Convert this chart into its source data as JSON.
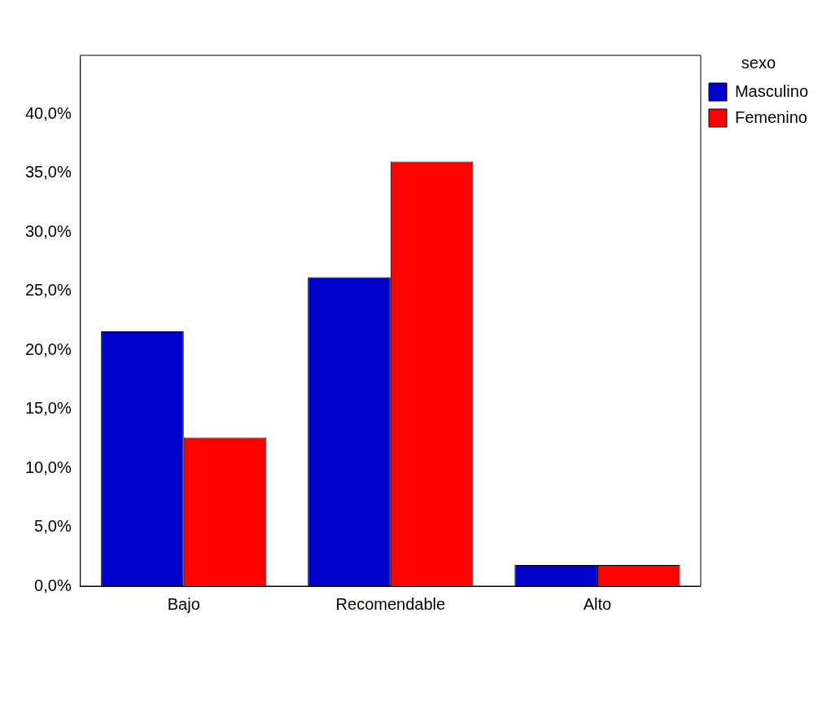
{
  "chart_data": {
    "type": "bar",
    "categories": [
      "Bajo",
      "Recomendable",
      "Alto"
    ],
    "series": [
      {
        "name": "Masculino",
        "color": "#0000cc",
        "values": [
          21.6,
          26.2,
          1.8
        ]
      },
      {
        "name": "Femenino",
        "color": "#ff0000",
        "values": [
          12.6,
          36.0,
          1.8
        ]
      }
    ],
    "legend_title": "sexo",
    "legend": "top right",
    "grid": false,
    "ylim": [
      0,
      45
    ],
    "yticks": [
      {
        "value": 0,
        "label": "0,0%"
      },
      {
        "value": 5,
        "label": "5,0%"
      },
      {
        "value": 10,
        "label": "10,0%"
      },
      {
        "value": 15,
        "label": "15,0%"
      },
      {
        "value": 20,
        "label": "20,0%"
      },
      {
        "value": 25,
        "label": "25,0%"
      },
      {
        "value": 30,
        "label": "30,0%"
      },
      {
        "value": 35,
        "label": "35,0%"
      },
      {
        "value": 40,
        "label": "40,0%"
      }
    ]
  }
}
